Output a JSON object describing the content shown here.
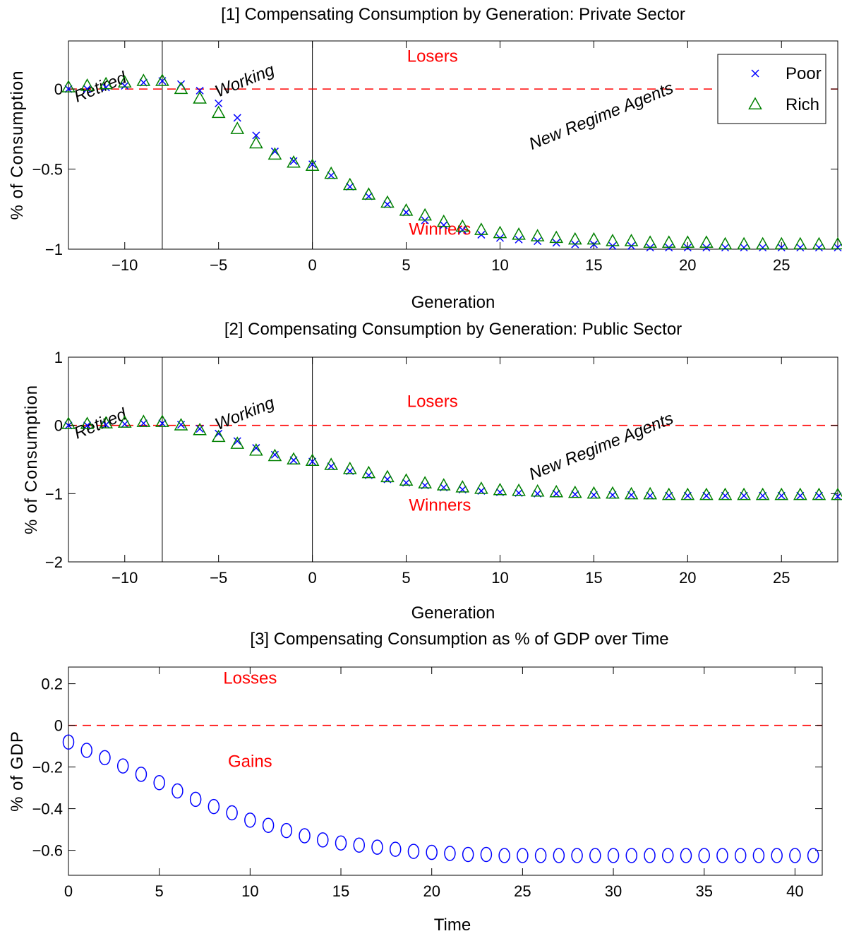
{
  "chart_data": [
    {
      "type": "scatter",
      "title": "[1] Compensating Consumption by Generation: Private Sector",
      "xlabel": "Generation",
      "ylabel": "% of Consumption",
      "xlim": [
        -13,
        28
      ],
      "ylim": [
        -1,
        0.3
      ],
      "xticks": [
        -10,
        -5,
        0,
        5,
        10,
        15,
        20,
        25
      ],
      "yticks": [
        -1,
        -0.5,
        0
      ],
      "ytick_labels": [
        "−1",
        "−0.5",
        "0"
      ],
      "reference_line": 0,
      "vertical_lines": [
        -8,
        0
      ],
      "legend": {
        "position": "top-right",
        "entries": [
          "Poor",
          "Rich"
        ]
      },
      "annotations": [
        {
          "text": "Losers",
          "x": 6.4,
          "y": 0.17,
          "color": "#ff0000",
          "rotate": 0,
          "italic": false
        },
        {
          "text": "Winners",
          "x": 6.8,
          "y": -0.91,
          "color": "#ff0000",
          "rotate": 0,
          "italic": false
        },
        {
          "text": "Retired",
          "x": -11.2,
          "y": -0.02,
          "color": "#000000",
          "rotate": -22,
          "italic": true
        },
        {
          "text": "Working",
          "x": -3.5,
          "y": 0.02,
          "color": "#000000",
          "rotate": -22,
          "italic": true
        },
        {
          "text": "New Regime Agents",
          "x": 15.5,
          "y": -0.2,
          "color": "#000000",
          "rotate": -22,
          "italic": true
        }
      ],
      "series": [
        {
          "name": "Poor",
          "marker": "x",
          "color": "#0000ff",
          "x": [
            -13,
            -12,
            -11,
            -10,
            -9,
            -8,
            -7,
            -6,
            -5,
            -4,
            -3,
            -2,
            -1,
            0,
            1,
            2,
            3,
            4,
            5,
            6,
            7,
            8,
            9,
            10,
            11,
            12,
            13,
            14,
            15,
            16,
            17,
            18,
            19,
            20,
            21,
            22,
            23,
            24,
            25,
            26,
            27,
            28
          ],
          "y": [
            0,
            0,
            0.01,
            0.02,
            0.04,
            0.05,
            0.03,
            -0.01,
            -0.09,
            -0.18,
            -0.29,
            -0.39,
            -0.45,
            -0.47,
            -0.54,
            -0.61,
            -0.67,
            -0.72,
            -0.77,
            -0.82,
            -0.85,
            -0.88,
            -0.91,
            -0.93,
            -0.94,
            -0.95,
            -0.96,
            -0.97,
            -0.97,
            -0.98,
            -0.98,
            -0.99,
            -0.99,
            -0.99,
            -0.99,
            -0.99,
            -0.99,
            -0.99,
            -0.99,
            -0.99,
            -0.99,
            -0.99
          ]
        },
        {
          "name": "Rich",
          "marker": "triangle",
          "color": "#008000",
          "x": [
            -13,
            -12,
            -11,
            -10,
            -9,
            -8,
            -7,
            -6,
            -5,
            -4,
            -3,
            -2,
            -1,
            0,
            1,
            2,
            3,
            4,
            5,
            6,
            7,
            8,
            9,
            10,
            11,
            12,
            13,
            14,
            15,
            16,
            17,
            18,
            19,
            20,
            21,
            22,
            23,
            24,
            25,
            26,
            27,
            28
          ],
          "y": [
            0.01,
            0.02,
            0.03,
            0.04,
            0.05,
            0.05,
            0,
            -0.06,
            -0.15,
            -0.25,
            -0.34,
            -0.41,
            -0.46,
            -0.48,
            -0.53,
            -0.6,
            -0.66,
            -0.71,
            -0.76,
            -0.79,
            -0.83,
            -0.86,
            -0.88,
            -0.9,
            -0.91,
            -0.92,
            -0.93,
            -0.94,
            -0.94,
            -0.95,
            -0.95,
            -0.96,
            -0.96,
            -0.96,
            -0.96,
            -0.97,
            -0.97,
            -0.97,
            -0.97,
            -0.97,
            -0.97,
            -0.97
          ]
        }
      ]
    },
    {
      "type": "scatter",
      "title": "[2] Compensating Consumption by Generation: Public Sector",
      "xlabel": "Generation",
      "ylabel": "% of Consumption",
      "xlim": [
        -13,
        28
      ],
      "ylim": [
        -2,
        1
      ],
      "xticks": [
        -10,
        -5,
        0,
        5,
        10,
        15,
        20,
        25
      ],
      "yticks": [
        -2,
        -1,
        0,
        1
      ],
      "ytick_labels": [
        "−2",
        "−1",
        "0",
        "1"
      ],
      "reference_line": 0,
      "vertical_lines": [
        -8,
        0
      ],
      "annotations": [
        {
          "text": "Losers",
          "x": 6.4,
          "y": 0.27,
          "color": "#ff0000",
          "rotate": 0,
          "italic": false
        },
        {
          "text": "Winners",
          "x": 6.8,
          "y": -1.25,
          "color": "#ff0000",
          "rotate": 0,
          "italic": false
        },
        {
          "text": "Retired",
          "x": -11.2,
          "y": -0.05,
          "color": "#000000",
          "rotate": -22,
          "italic": true
        },
        {
          "text": "Working",
          "x": -3.5,
          "y": 0.1,
          "color": "#000000",
          "rotate": -22,
          "italic": true
        },
        {
          "text": "New Regime Agents",
          "x": 15.5,
          "y": -0.38,
          "color": "#000000",
          "rotate": -22,
          "italic": true
        }
      ],
      "series": [
        {
          "name": "Poor",
          "marker": "x",
          "color": "#0000ff",
          "x": [
            -13,
            -12,
            -11,
            -10,
            -9,
            -8,
            -7,
            -6,
            -5,
            -4,
            -3,
            -2,
            -1,
            0,
            1,
            2,
            3,
            4,
            5,
            6,
            7,
            8,
            9,
            10,
            11,
            12,
            13,
            14,
            15,
            16,
            17,
            18,
            19,
            20,
            21,
            22,
            23,
            24,
            25,
            26,
            27,
            28
          ],
          "y": [
            0,
            0,
            0.01,
            0.02,
            0.03,
            0.03,
            0.01,
            -0.05,
            -0.12,
            -0.23,
            -0.33,
            -0.43,
            -0.51,
            -0.53,
            -0.6,
            -0.67,
            -0.73,
            -0.79,
            -0.84,
            -0.88,
            -0.91,
            -0.94,
            -0.96,
            -0.98,
            -0.99,
            -1,
            -1,
            -1.01,
            -1.02,
            -1.02,
            -1.02,
            -1.03,
            -1.03,
            -1.03,
            -1.03,
            -1.03,
            -1.03,
            -1.03,
            -1.03,
            -1.03,
            -1.03,
            -1.04
          ]
        },
        {
          "name": "Rich",
          "marker": "triangle",
          "color": "#008000",
          "x": [
            -13,
            -12,
            -11,
            -10,
            -9,
            -8,
            -7,
            -6,
            -5,
            -4,
            -3,
            -2,
            -1,
            0,
            1,
            2,
            3,
            4,
            5,
            6,
            7,
            8,
            9,
            10,
            11,
            12,
            13,
            14,
            15,
            16,
            17,
            18,
            19,
            20,
            21,
            22,
            23,
            24,
            25,
            26,
            27,
            28
          ],
          "y": [
            0.02,
            0.02,
            0.03,
            0.04,
            0.05,
            0.05,
            0,
            -0.07,
            -0.17,
            -0.27,
            -0.37,
            -0.45,
            -0.5,
            -0.52,
            -0.58,
            -0.64,
            -0.7,
            -0.76,
            -0.81,
            -0.85,
            -0.88,
            -0.91,
            -0.93,
            -0.95,
            -0.96,
            -0.97,
            -0.98,
            -0.99,
            -1,
            -1,
            -1.01,
            -1.01,
            -1.02,
            -1.02,
            -1.02,
            -1.02,
            -1.02,
            -1.02,
            -1.02,
            -1.02,
            -1.02,
            -1.02
          ]
        }
      ]
    },
    {
      "type": "scatter",
      "title": "[3] Compensating Consumption as % of GDP over Time",
      "xlabel": "Time",
      "ylabel": "% of GDP",
      "xlim": [
        0,
        41.5
      ],
      "ylim": [
        -0.72,
        0.28
      ],
      "xticks": [
        0,
        5,
        10,
        15,
        20,
        25,
        30,
        35,
        40
      ],
      "yticks": [
        -0.6,
        -0.4,
        -0.2,
        0,
        0.2
      ],
      "ytick_labels": [
        "−0.6",
        "−0.4",
        "−0.2",
        "0",
        "0.2"
      ],
      "reference_line": 0,
      "vertical_lines": [],
      "annotations": [
        {
          "text": "Losses",
          "x": 10,
          "y": 0.2,
          "color": "#ff0000",
          "rotate": 0,
          "italic": false
        },
        {
          "text": "Gains",
          "x": 10,
          "y": -0.2,
          "color": "#ff0000",
          "rotate": 0,
          "italic": false
        }
      ],
      "series": [
        {
          "name": "",
          "marker": "circle",
          "color": "#0000ff",
          "x": [
            0,
            1,
            2,
            3,
            4,
            5,
            6,
            7,
            8,
            9,
            10,
            11,
            12,
            13,
            14,
            15,
            16,
            17,
            18,
            19,
            20,
            21,
            22,
            23,
            24,
            25,
            26,
            27,
            28,
            29,
            30,
            31,
            32,
            33,
            34,
            35,
            36,
            37,
            38,
            39,
            40,
            41
          ],
          "y": [
            -0.08,
            -0.12,
            -0.155,
            -0.195,
            -0.235,
            -0.275,
            -0.315,
            -0.355,
            -0.39,
            -0.42,
            -0.455,
            -0.48,
            -0.505,
            -0.53,
            -0.55,
            -0.565,
            -0.575,
            -0.585,
            -0.595,
            -0.605,
            -0.61,
            -0.615,
            -0.62,
            -0.62,
            -0.625,
            -0.625,
            -0.625,
            -0.625,
            -0.625,
            -0.625,
            -0.625,
            -0.625,
            -0.625,
            -0.625,
            -0.625,
            -0.625,
            -0.625,
            -0.625,
            -0.625,
            -0.625,
            -0.625,
            -0.625
          ]
        }
      ]
    }
  ]
}
